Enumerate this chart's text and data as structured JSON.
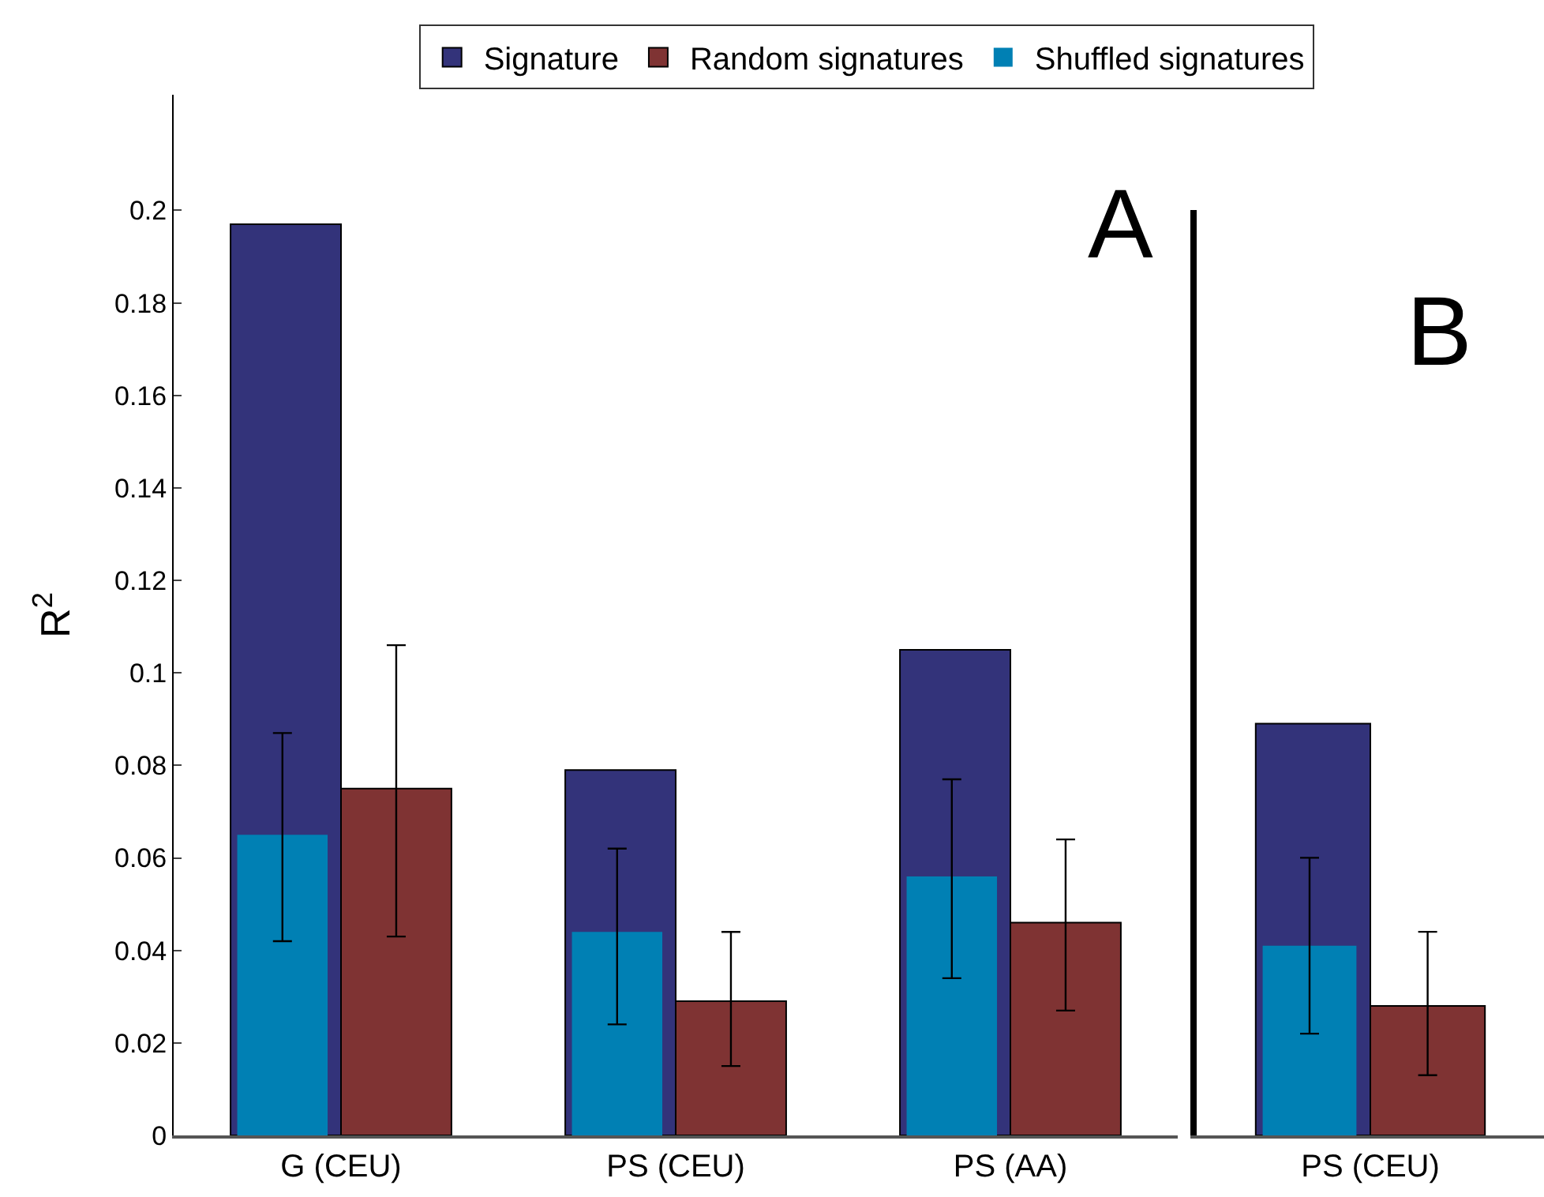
{
  "chart_data": [
    {
      "type": "bar",
      "ylabel": "R$^{2}$",
      "categories": [
        "G (CEU)",
        "PS (CEU)",
        "PS (AA)"
      ],
      "annotations": [
        "A"
      ],
      "legend": "top",
      "ylim": [
        0,
        0.225
      ],
      "yticks": [
        0,
        0.02,
        0.04,
        0.06,
        0.08,
        0.1,
        0.12,
        0.14,
        0.16,
        0.18,
        0.2
      ],
      "series": [
        {
          "name": "Signature",
          "color": "#33337a",
          "values": [
            0.197,
            0.079,
            0.105
          ]
        },
        {
          "name": "Random signatures",
          "color": "#7f3333",
          "values": [
            0.075,
            0.029,
            0.046
          ],
          "errors": [
            [
              0.043,
              0.106
            ],
            [
              0.015,
              0.044
            ],
            [
              0.027,
              0.064
            ]
          ]
        },
        {
          "name": "Shuffled signatures",
          "color": "#0080b4",
          "values": [
            0.065,
            0.044,
            0.056
          ],
          "errors": [
            [
              0.042,
              0.087
            ],
            [
              0.024,
              0.062
            ],
            [
              0.034,
              0.077
            ]
          ]
        }
      ]
    },
    {
      "type": "bar",
      "categories": [
        "PS (CEU)"
      ],
      "annotations": [
        "B"
      ],
      "tick_labels": "x",
      "ylim": [
        0,
        0.2
      ],
      "yticks": [
        0,
        0.02,
        0.04,
        0.06,
        0.08,
        0.1,
        0.12,
        0.14,
        0.16,
        0.18,
        0.2
      ],
      "series": [
        {
          "color": "#33337a",
          "values": [
            0.089
          ]
        },
        {
          "color": "#7f3333",
          "values": [
            0.028
          ],
          "errors": [
            [
              0.013,
              0.044
            ]
          ]
        },
        {
          "color": "#0080b4",
          "values": [
            0.041
          ],
          "errors": [
            [
              0.022,
              0.06
            ]
          ]
        }
      ]
    }
  ]
}
